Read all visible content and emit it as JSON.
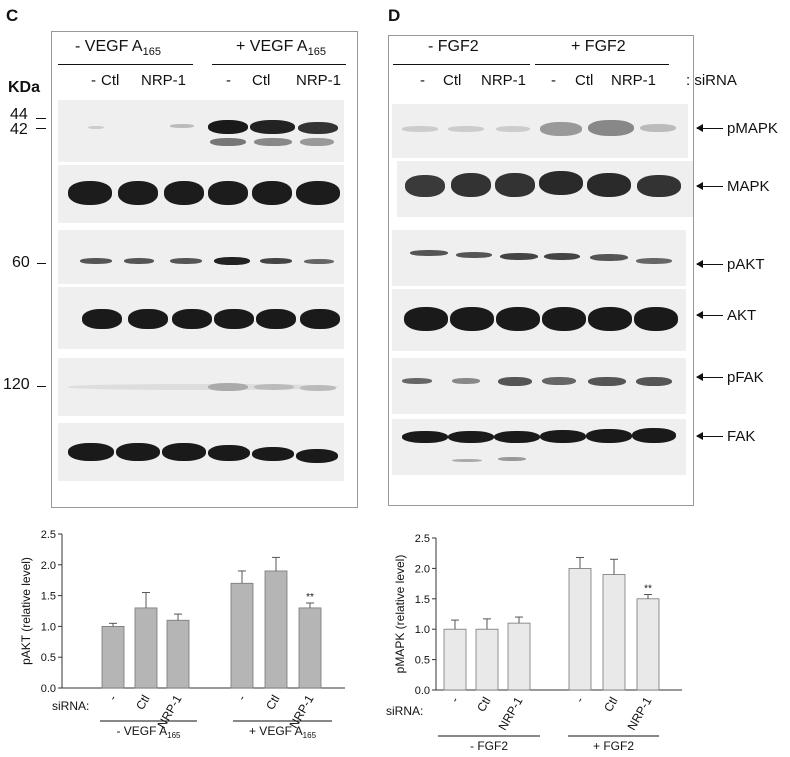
{
  "panel_c": {
    "letter": "C",
    "kda_label": "KDa",
    "group_minus": "- VEGF A",
    "group_plus": "+ VEGF A",
    "group_sub": "165",
    "lanes": [
      "-",
      "Ctl",
      "NRP-1",
      "-",
      "Ctl",
      "NRP-1"
    ],
    "markers": [
      "44",
      "42",
      "60",
      "120"
    ]
  },
  "panel_d": {
    "letter": "D",
    "group_minus": "- FGF2",
    "group_plus": "+ FGF2",
    "lanes": [
      "-",
      "Ctl",
      "NRP-1",
      "-",
      "Ctl",
      "NRP-1"
    ],
    "sirna_label": ": siRNA",
    "blot_labels": [
      "pMAPK",
      "MAPK",
      "pAKT",
      "AKT",
      "pFAK",
      "FAK"
    ]
  },
  "colors": {
    "bar_c": "#b5b5b5",
    "bar_d": "#e9e9e9",
    "band": "#1a1a1a"
  },
  "chart_data": [
    {
      "type": "bar",
      "ylabel": "pAKT (relative level)",
      "ylim": [
        0,
        2.5
      ],
      "yticks": [
        "0.0",
        "0.5",
        "1.0",
        "1.5",
        "2.0",
        "2.5"
      ],
      "sirna_label": "siRNA:",
      "categories": [
        "-",
        "Ctl",
        "NRP-1",
        "-",
        "Ctl",
        "NRP-1"
      ],
      "values": [
        1.0,
        1.3,
        1.1,
        1.7,
        1.9,
        1.3
      ],
      "errors": [
        0.05,
        0.25,
        0.1,
        0.2,
        0.22,
        0.08
      ],
      "annotations": [
        "",
        "",
        "",
        "",
        "",
        "**"
      ],
      "group_labels": [
        "- VEGF A",
        "+ VEGF A"
      ],
      "group_sub": "165"
    },
    {
      "type": "bar",
      "ylabel": "pMAPK (relative level)",
      "ylim": [
        0,
        2.5
      ],
      "yticks": [
        "0.0",
        "0.5",
        "1.0",
        "1.5",
        "2.0",
        "2.5"
      ],
      "sirna_label": "siRNA:",
      "categories": [
        "-",
        "Ctl",
        "NRP-1",
        "-",
        "Ctl",
        "NRP-1"
      ],
      "values": [
        1.0,
        1.0,
        1.1,
        2.0,
        1.9,
        1.5
      ],
      "errors": [
        0.15,
        0.17,
        0.1,
        0.18,
        0.25,
        0.07
      ],
      "annotations": [
        "",
        "",
        "",
        "",
        "",
        "**"
      ],
      "group_labels": [
        "- FGF2",
        "+ FGF2"
      ]
    }
  ]
}
